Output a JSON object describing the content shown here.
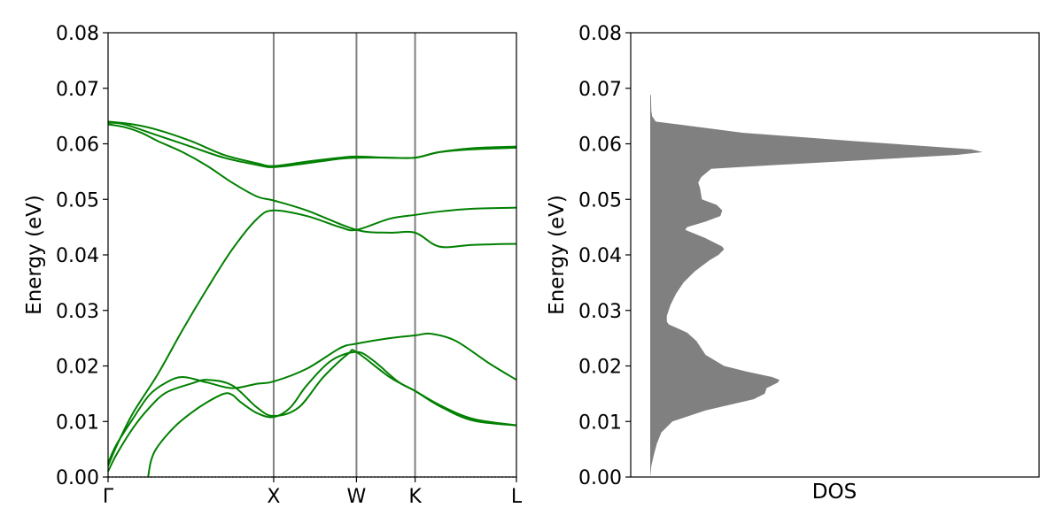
{
  "chart_data": [
    {
      "type": "line",
      "title": "",
      "xlabel": "",
      "ylabel": "Energy (eV)",
      "ylim": [
        0,
        0.08
      ],
      "yticks": [
        "0.00",
        "0.01",
        "0.02",
        "0.03",
        "0.04",
        "0.05",
        "0.06",
        "0.07",
        "0.08"
      ],
      "x_ticks": [
        {
          "label": "Γ",
          "x": 0
        },
        {
          "label": "X",
          "x": 1.0
        },
        {
          "label": "W",
          "x": 1.5
        },
        {
          "label": "K",
          "x": 1.854
        },
        {
          "label": "L",
          "x": 2.466
        }
      ],
      "xlim": [
        0,
        2.466
      ],
      "line_color": "#008000",
      "vline_color": "#808080",
      "bands": [
        {
          "x": [
            0,
            0.1,
            0.2,
            0.3,
            0.45,
            0.6,
            0.75,
            0.9,
            1.0,
            1.2,
            1.5,
            1.7,
            1.854,
            2.0,
            2.2,
            2.466
          ],
          "y": [
            0.0635,
            0.063,
            0.062,
            0.0605,
            0.0585,
            0.056,
            0.053,
            0.0505,
            0.0498,
            0.048,
            0.0445,
            0.044,
            0.044,
            0.0415,
            0.0418,
            0.042
          ]
        },
        {
          "x": [
            0,
            0.1,
            0.3,
            0.5,
            0.7,
            0.9,
            1.0,
            1.2,
            1.4,
            1.5,
            1.7,
            1.854,
            2.0,
            2.2,
            2.466
          ],
          "y": [
            0.0638,
            0.0635,
            0.0615,
            0.0595,
            0.0575,
            0.0562,
            0.0558,
            0.0565,
            0.0573,
            0.0575,
            0.0575,
            0.0575,
            0.0585,
            0.059,
            0.0593
          ]
        },
        {
          "x": [
            0,
            0.15,
            0.3,
            0.5,
            0.7,
            0.9,
            1.0,
            1.2,
            1.4,
            1.5,
            1.7,
            1.854,
            2.0,
            2.2,
            2.466
          ],
          "y": [
            0.064,
            0.0635,
            0.0625,
            0.0605,
            0.058,
            0.0565,
            0.056,
            0.0568,
            0.0575,
            0.0577,
            0.0575,
            0.0575,
            0.0585,
            0.0592,
            0.0595
          ]
        },
        {
          "x": [
            0,
            0.05,
            0.15,
            0.3,
            0.45,
            0.6,
            0.75,
            0.9,
            1.0,
            1.2,
            1.4,
            1.5,
            1.7,
            1.854,
            2.0,
            2.2,
            2.466
          ],
          "y": [
            0.002,
            0.0055,
            0.0115,
            0.0185,
            0.0265,
            0.034,
            0.041,
            0.0465,
            0.048,
            0.047,
            0.045,
            0.0445,
            0.0465,
            0.0472,
            0.0478,
            0.0483,
            0.0485
          ]
        },
        {
          "x": [
            0,
            0.05,
            0.15,
            0.25,
            0.35,
            0.45,
            0.6,
            0.75,
            0.9,
            1.0,
            1.2,
            1.4,
            1.5,
            1.7,
            1.854,
            1.95,
            2.1,
            2.3,
            2.466
          ],
          "y": [
            0.0025,
            0.0058,
            0.0105,
            0.0148,
            0.017,
            0.018,
            0.017,
            0.016,
            0.0168,
            0.0172,
            0.0195,
            0.0232,
            0.024,
            0.025,
            0.0255,
            0.0258,
            0.0245,
            0.0205,
            0.0175
          ]
        },
        {
          "x": [
            0,
            0.05,
            0.15,
            0.25,
            0.35,
            0.5,
            0.6,
            0.75,
            0.9,
            1.0,
            1.15,
            1.3,
            1.45,
            1.5,
            1.7,
            1.854,
            2.0,
            2.2,
            2.466
          ],
          "y": [
            0.001,
            0.004,
            0.0088,
            0.0125,
            0.0152,
            0.0168,
            0.0175,
            0.0165,
            0.0125,
            0.011,
            0.0125,
            0.018,
            0.0222,
            0.0225,
            0.018,
            0.0155,
            0.013,
            0.0105,
            0.0093
          ]
        },
        {
          "x": [
            0.242,
            0.26,
            0.3,
            0.4,
            0.5,
            0.6,
            0.7,
            0.75,
            0.8,
            0.9,
            1.0,
            1.1,
            1.2,
            1.35,
            1.5,
            1.6,
            1.75,
            1.854,
            2.0,
            2.2,
            2.466
          ],
          "y": [
            0.0,
            0.003,
            0.0055,
            0.009,
            0.0115,
            0.0135,
            0.015,
            0.0148,
            0.0135,
            0.0115,
            0.0108,
            0.0125,
            0.0165,
            0.021,
            0.0225,
            0.021,
            0.0172,
            0.0155,
            0.0128,
            0.0102,
            0.0093
          ]
        }
      ]
    },
    {
      "type": "area",
      "title": "",
      "xlabel": "DOS",
      "ylabel": "Energy (eV)",
      "ylim": [
        0,
        0.08
      ],
      "yticks": [
        "0.00",
        "0.01",
        "0.02",
        "0.03",
        "0.04",
        "0.05",
        "0.06",
        "0.07",
        "0.08"
      ],
      "fill_color": "#808080",
      "energy": [
        0.0,
        0.002,
        0.004,
        0.006,
        0.008,
        0.01,
        0.012,
        0.014,
        0.015,
        0.016,
        0.017,
        0.0175,
        0.018,
        0.019,
        0.02,
        0.022,
        0.0245,
        0.026,
        0.0275,
        0.028,
        0.029,
        0.031,
        0.033,
        0.035,
        0.037,
        0.039,
        0.04,
        0.041,
        0.0415,
        0.043,
        0.0445,
        0.045,
        0.046,
        0.047,
        0.048,
        0.049,
        0.05,
        0.052,
        0.053,
        0.054,
        0.0555,
        0.056,
        0.058,
        0.0585,
        0.059,
        0.0605,
        0.062,
        0.0635,
        0.064,
        0.065,
        0.066,
        0.0688
      ],
      "dos": [
        0.0,
        0.003,
        0.01,
        0.018,
        0.03,
        0.06,
        0.15,
        0.28,
        0.31,
        0.315,
        0.345,
        0.35,
        0.33,
        0.26,
        0.2,
        0.15,
        0.125,
        0.1,
        0.05,
        0.045,
        0.045,
        0.055,
        0.07,
        0.09,
        0.12,
        0.16,
        0.185,
        0.2,
        0.195,
        0.15,
        0.095,
        0.1,
        0.15,
        0.19,
        0.195,
        0.18,
        0.14,
        0.135,
        0.13,
        0.138,
        0.165,
        0.29,
        0.83,
        0.9,
        0.87,
        0.55,
        0.25,
        0.075,
        0.015,
        0.005,
        0.003,
        0.002
      ],
      "xlim": [
        0,
        1.0
      ]
    }
  ]
}
